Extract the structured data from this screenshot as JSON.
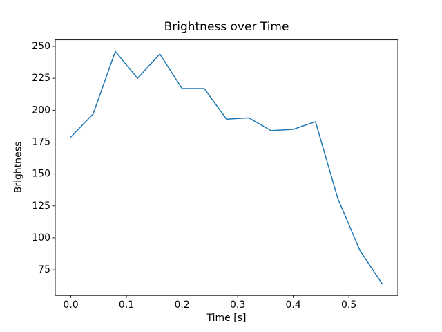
{
  "figure": {
    "background": "#ffffff",
    "text_color": "#000000"
  },
  "chart_data": {
    "type": "line",
    "title": "Brightness over Time",
    "xlabel": "Time [s]",
    "ylabel": "Brightness",
    "x": [
      0.0,
      0.04,
      0.08,
      0.12,
      0.16,
      0.2,
      0.24,
      0.28,
      0.32,
      0.36,
      0.4,
      0.44,
      0.48,
      0.52,
      0.56
    ],
    "values": [
      179,
      197,
      246,
      225,
      244,
      217,
      217,
      193,
      194,
      184,
      185,
      191,
      131,
      90,
      64
    ],
    "line_color": "#1f77b4",
    "line_width": 1.5,
    "markers": false,
    "grid": false,
    "legend": false,
    "xlim": [
      -0.028,
      0.588
    ],
    "ylim": [
      54.9,
      255.1
    ],
    "xtick_values": [
      0.0,
      0.1,
      0.2,
      0.3,
      0.4,
      0.5
    ],
    "xtick_labels": [
      "0.0",
      "0.1",
      "0.2",
      "0.3",
      "0.4",
      "0.5"
    ],
    "ytick_values": [
      75,
      100,
      125,
      150,
      175,
      200,
      225,
      250
    ],
    "ytick_labels": [
      "75",
      "100",
      "125",
      "150",
      "175",
      "200",
      "225",
      "250"
    ],
    "axis_color": "#000000"
  }
}
